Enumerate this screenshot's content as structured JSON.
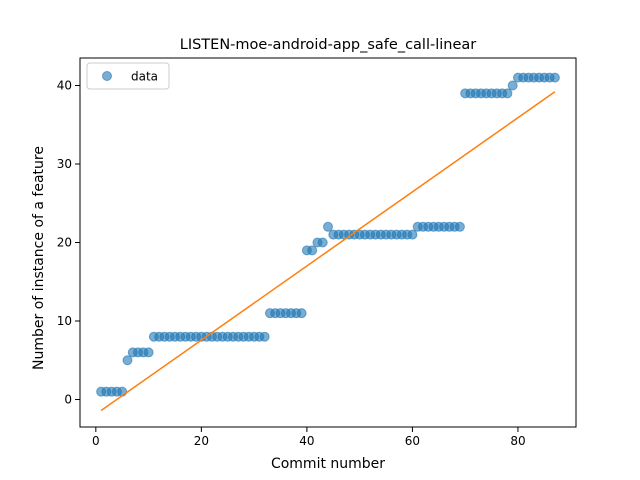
{
  "chart_data": {
    "type": "scatter",
    "title": "LISTEN-moe-android-app_safe_call-linear",
    "xlabel": "Commit number",
    "ylabel": "Number of instance of a feature",
    "xlim": [
      -3,
      91
    ],
    "ylim": [
      -3.5,
      43.5
    ],
    "xticks": [
      0,
      20,
      40,
      60,
      80
    ],
    "yticks": [
      0,
      10,
      20,
      30,
      40
    ],
    "legend": {
      "position": "top-left",
      "entries": [
        {
          "label": "data",
          "marker": "circle",
          "color": "#1f77b4"
        }
      ]
    },
    "grid": false,
    "series": [
      {
        "name": "data",
        "kind": "scatter",
        "color": "#1f77b4",
        "x": [
          1,
          2,
          3,
          4,
          5,
          6,
          7,
          8,
          9,
          10,
          11,
          12,
          13,
          14,
          15,
          16,
          17,
          18,
          19,
          20,
          21,
          22,
          23,
          24,
          25,
          26,
          27,
          28,
          29,
          30,
          31,
          32,
          33,
          34,
          35,
          36,
          37,
          38,
          39,
          40,
          41,
          42,
          43,
          44,
          45,
          46,
          47,
          48,
          49,
          50,
          51,
          52,
          53,
          54,
          55,
          56,
          57,
          58,
          59,
          60,
          61,
          62,
          63,
          64,
          65,
          66,
          67,
          68,
          69,
          70,
          71,
          72,
          73,
          74,
          75,
          76,
          77,
          78,
          79,
          80,
          81,
          82,
          83,
          84,
          85,
          86,
          87
        ],
        "y": [
          1,
          1,
          1,
          1,
          1,
          5,
          6,
          6,
          6,
          6,
          8,
          8,
          8,
          8,
          8,
          8,
          8,
          8,
          8,
          8,
          8,
          8,
          8,
          8,
          8,
          8,
          8,
          8,
          8,
          8,
          8,
          8,
          11,
          11,
          11,
          11,
          11,
          11,
          11,
          19,
          19,
          20,
          20,
          22,
          21,
          21,
          21,
          21,
          21,
          21,
          21,
          21,
          21,
          21,
          21,
          21,
          21,
          21,
          21,
          21,
          22,
          22,
          22,
          22,
          22,
          22,
          22,
          22,
          22,
          39,
          39,
          39,
          39,
          39,
          39,
          39,
          39,
          39,
          40,
          41,
          41,
          41,
          41,
          41,
          41,
          41,
          41
        ]
      },
      {
        "name": "",
        "kind": "line",
        "color": "#ff7f0e",
        "x": [
          1,
          87
        ],
        "y": [
          -1.4,
          39.2
        ]
      }
    ]
  }
}
